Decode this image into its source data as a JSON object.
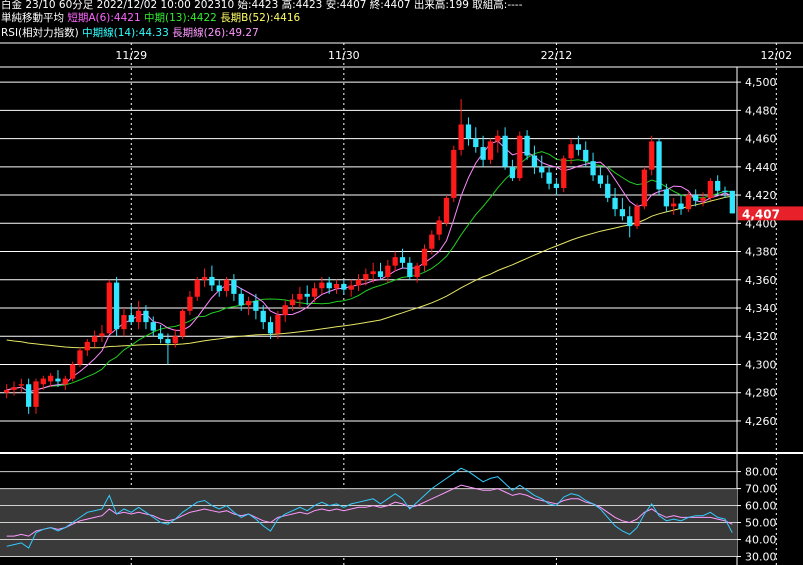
{
  "header": {
    "line1": "白金 23/10 60分足 2022/12/02 10:00 202310 始:4423 高:4423 安:4407 終:4407 出来高:199 取組高:----",
    "sma_title": "単純移動平均",
    "sma_short": "短期A(6):4421",
    "sma_mid": "中期(13):4422",
    "sma_long": "長期B(52):4416",
    "rsi_title": "RSI(相対力指数)",
    "rsi_mid": "中期線(14):44.33",
    "rsi_long": "長期線(26):49.27"
  },
  "colors": {
    "up": "#ff1a1a",
    "down": "#33e6ff",
    "ma_short": "#ff88ff",
    "ma_mid": "#22cc22",
    "ma_long": "#e6e666",
    "rsi_mid": "#33ccff",
    "rsi_long": "#ff99ff",
    "grid": "#ffffff",
    "price_tag": "#e8202a"
  },
  "chart_data": [
    {
      "type": "candlestick",
      "title": "白金 23/10 60分足",
      "x_tick_labels": [
        {
          "index": 17,
          "label": "11/29"
        },
        {
          "index": 46,
          "label": "11/30"
        },
        {
          "index": 75,
          "label": "22/12"
        },
        {
          "index": 105,
          "label": "12/02"
        }
      ],
      "y_ticks": [
        4260,
        4280,
        4300,
        4320,
        4340,
        4360,
        4380,
        4400,
        4420,
        4440,
        4460,
        4480,
        4500
      ],
      "y_tick_labels": [
        "4,260",
        "4,280",
        "4,300",
        "4,320",
        "4,340",
        "4,360",
        "4,380",
        "4,400",
        "4,420",
        "4,440",
        "4,460",
        "4,480",
        "4,500"
      ],
      "ylim": [
        4238,
        4510
      ],
      "current_price_label": "4,407",
      "current_price": 4407,
      "candles": [
        [
          4280,
          4286,
          4276,
          4282
        ],
        [
          4282,
          4288,
          4278,
          4284
        ],
        [
          4285,
          4290,
          4280,
          4286
        ],
        [
          4286,
          4290,
          4265,
          4270
        ],
        [
          4270,
          4290,
          4265,
          4288
        ],
        [
          4286,
          4292,
          4282,
          4290
        ],
        [
          4288,
          4294,
          4284,
          4292
        ],
        [
          4290,
          4296,
          4284,
          4288
        ],
        [
          4286,
          4292,
          4282,
          4290
        ],
        [
          4290,
          4302,
          4288,
          4300
        ],
        [
          4300,
          4312,
          4298,
          4310
        ],
        [
          4310,
          4318,
          4306,
          4316
        ],
        [
          4316,
          4324,
          4312,
          4320
        ],
        [
          4320,
          4328,
          4316,
          4322
        ],
        [
          4322,
          4360,
          4322,
          4358
        ],
        [
          4358,
          4362,
          4320,
          4325
        ],
        [
          4325,
          4340,
          4320,
          4335
        ],
        [
          4335,
          4342,
          4328,
          4330
        ],
        [
          4330,
          4345,
          4325,
          4338
        ],
        [
          4338,
          4342,
          4325,
          4330
        ],
        [
          4330,
          4334,
          4320,
          4324
        ],
        [
          4322,
          4328,
          4315,
          4318
        ],
        [
          4318,
          4322,
          4300,
          4315
        ],
        [
          4315,
          4325,
          4312,
          4320
        ],
        [
          4320,
          4340,
          4318,
          4338
        ],
        [
          4338,
          4352,
          4335,
          4348
        ],
        [
          4348,
          4362,
          4345,
          4360
        ],
        [
          4360,
          4368,
          4355,
          4362
        ],
        [
          4362,
          4370,
          4352,
          4356
        ],
        [
          4356,
          4360,
          4348,
          4352
        ],
        [
          4352,
          4362,
          4348,
          4360
        ],
        [
          4360,
          4364,
          4345,
          4350
        ],
        [
          4350,
          4354,
          4338,
          4342
        ],
        [
          4342,
          4348,
          4335,
          4345
        ],
        [
          4345,
          4350,
          4332,
          4338
        ],
        [
          4338,
          4342,
          4325,
          4330
        ],
        [
          4330,
          4334,
          4318,
          4322
        ],
        [
          4322,
          4338,
          4318,
          4335
        ],
        [
          4335,
          4345,
          4330,
          4342
        ],
        [
          4342,
          4350,
          4338,
          4346
        ],
        [
          4346,
          4355,
          4340,
          4350
        ],
        [
          4350,
          4356,
          4342,
          4348
        ],
        [
          4348,
          4358,
          4344,
          4354
        ],
        [
          4354,
          4362,
          4350,
          4358
        ],
        [
          4358,
          4362,
          4350,
          4354
        ],
        [
          4354,
          4360,
          4350,
          4357
        ],
        [
          4357,
          4360,
          4350,
          4353
        ],
        [
          4353,
          4360,
          4348,
          4356
        ],
        [
          4356,
          4364,
          4352,
          4360
        ],
        [
          4360,
          4368,
          4356,
          4364
        ],
        [
          4364,
          4372,
          4358,
          4366
        ],
        [
          4366,
          4372,
          4360,
          4362
        ],
        [
          4362,
          4374,
          4358,
          4370
        ],
        [
          4370,
          4380,
          4366,
          4376
        ],
        [
          4376,
          4382,
          4368,
          4372
        ],
        [
          4372,
          4376,
          4360,
          4362
        ],
        [
          4362,
          4372,
          4358,
          4370
        ],
        [
          4370,
          4385,
          4366,
          4382
        ],
        [
          4382,
          4395,
          4378,
          4392
        ],
        [
          4392,
          4405,
          4388,
          4402
        ],
        [
          4400,
          4420,
          4398,
          4418
        ],
        [
          4418,
          4455,
          4415,
          4452
        ],
        [
          4452,
          4488,
          4448,
          4470
        ],
        [
          4470,
          4475,
          4455,
          4460
        ],
        [
          4460,
          4468,
          4450,
          4454
        ],
        [
          4454,
          4462,
          4440,
          4445
        ],
        [
          4445,
          4460,
          4442,
          4458
        ],
        [
          4458,
          4466,
          4450,
          4462
        ],
        [
          4462,
          4468,
          4438,
          4440
        ],
        [
          4440,
          4445,
          4430,
          4432
        ],
        [
          4432,
          4465,
          4430,
          4462
        ],
        [
          4462,
          4466,
          4445,
          4448
        ],
        [
          4448,
          4455,
          4435,
          4440
        ],
        [
          4440,
          4448,
          4432,
          4436
        ],
        [
          4436,
          4440,
          4424,
          4428
        ],
        [
          4428,
          4432,
          4420,
          4425
        ],
        [
          4425,
          4448,
          4422,
          4446
        ],
        [
          4446,
          4460,
          4442,
          4456
        ],
        [
          4456,
          4462,
          4448,
          4452
        ],
        [
          4452,
          4458,
          4440,
          4444
        ],
        [
          4444,
          4450,
          4430,
          4434
        ],
        [
          4434,
          4440,
          4425,
          4428
        ],
        [
          4428,
          4434,
          4415,
          4418
        ],
        [
          4418,
          4425,
          4405,
          4410
        ],
        [
          4410,
          4418,
          4402,
          4405
        ],
        [
          4405,
          4412,
          4390,
          4398
        ],
        [
          4398,
          4414,
          4396,
          4412
        ],
        [
          4412,
          4440,
          4410,
          4438
        ],
        [
          4438,
          4462,
          4434,
          4458
        ],
        [
          4458,
          4460,
          4420,
          4424
        ],
        [
          4424,
          4428,
          4408,
          4412
        ],
        [
          4412,
          4418,
          4406,
          4414
        ],
        [
          4414,
          4420,
          4406,
          4410
        ],
        [
          4410,
          4422,
          4408,
          4420
        ],
        [
          4420,
          4424,
          4412,
          4416
        ],
        [
          4416,
          4422,
          4412,
          4418
        ],
        [
          4418,
          4432,
          4416,
          4430
        ],
        [
          4430,
          4434,
          4420,
          4423
        ],
        [
          4423,
          4426,
          4418,
          4422
        ],
        [
          4423,
          4423,
          4407,
          4407
        ]
      ]
    },
    {
      "type": "line",
      "title": "RSI(相対力指数)",
      "y_ticks": [
        30,
        40,
        50,
        60,
        70,
        80
      ],
      "y_tick_labels": [
        "30.00",
        "40.00",
        "50.00",
        "60.00",
        "70.00",
        "80.00"
      ],
      "ylim": [
        25,
        88
      ],
      "series": [
        {
          "name": "中期線(14)",
          "values": [
            36,
            37,
            38,
            35,
            44,
            46,
            47,
            45,
            47,
            50,
            53,
            56,
            57,
            58,
            66,
            55,
            58,
            56,
            59,
            56,
            53,
            50,
            49,
            52,
            56,
            59,
            62,
            63,
            60,
            58,
            60,
            56,
            53,
            55,
            52,
            48,
            45,
            52,
            55,
            57,
            59,
            57,
            60,
            62,
            60,
            61,
            59,
            61,
            62,
            63,
            64,
            61,
            64,
            67,
            64,
            58,
            62,
            66,
            70,
            73,
            76,
            79,
            82,
            80,
            77,
            74,
            76,
            77,
            73,
            69,
            72,
            69,
            66,
            64,
            61,
            60,
            65,
            67,
            66,
            63,
            61,
            58,
            53,
            48,
            45,
            43,
            47,
            55,
            61,
            54,
            51,
            52,
            51,
            53,
            54,
            54,
            56,
            53,
            52,
            44
          ]
        },
        {
          "name": "長期線(26)",
          "values": [
            42,
            42,
            43,
            42,
            45,
            46,
            47,
            46,
            47,
            49,
            51,
            52,
            53,
            54,
            58,
            55,
            56,
            55,
            56,
            55,
            54,
            52,
            51,
            52,
            54,
            56,
            57,
            58,
            57,
            56,
            57,
            55,
            54,
            55,
            53,
            51,
            50,
            53,
            54,
            55,
            56,
            55,
            57,
            58,
            57,
            58,
            57,
            58,
            59,
            59,
            60,
            59,
            60,
            62,
            61,
            59,
            60,
            62,
            64,
            66,
            68,
            70,
            72,
            71,
            70,
            69,
            69,
            70,
            68,
            66,
            67,
            66,
            64,
            63,
            62,
            61,
            63,
            64,
            64,
            62,
            61,
            59,
            56,
            53,
            51,
            50,
            52,
            56,
            58,
            55,
            53,
            54,
            53,
            53,
            53,
            53,
            53,
            52,
            51,
            49
          ]
        }
      ]
    }
  ]
}
